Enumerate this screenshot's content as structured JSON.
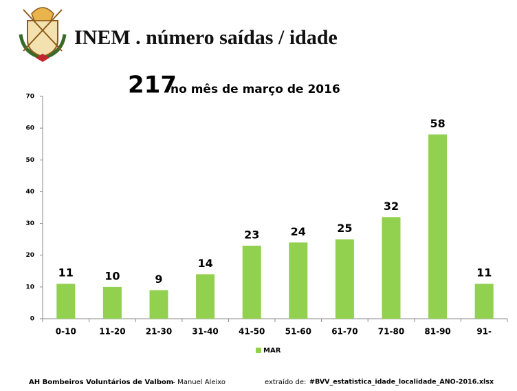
{
  "header": {
    "title": "INEM . número saídas / idade"
  },
  "chart_data": {
    "type": "bar",
    "title": "217",
    "subtitle": "no mês de março de 2016",
    "categories": [
      "0-10",
      "11-20",
      "21-30",
      "31-40",
      "41-50",
      "51-60",
      "61-70",
      "71-80",
      "81-90",
      "91-"
    ],
    "series": [
      {
        "name": "MAR",
        "color": "#92d050",
        "values": [
          11,
          10,
          9,
          14,
          23,
          24,
          25,
          32,
          58,
          11
        ]
      }
    ],
    "ylim": [
      0,
      70
    ],
    "yticks": [
      0,
      10,
      20,
      30,
      40,
      50,
      60,
      70
    ],
    "grid": false,
    "legend": "bottom"
  },
  "footer": {
    "organization": "AH Bombeiros Voluntários de Valbom",
    "author": "– Manuel Aleixo",
    "source_label": "extraído de:",
    "source_file": "#BVV_estatistica_idade_localidade_ANO-2016.xlsx"
  }
}
